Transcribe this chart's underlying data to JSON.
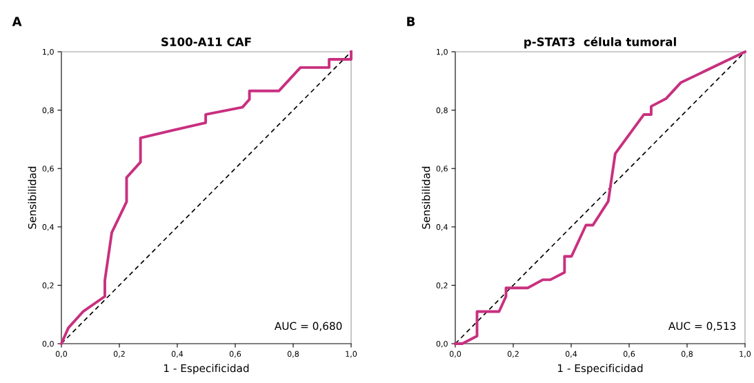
{
  "chart_data": [
    {
      "type": "line",
      "title": "S100-A11 CAF",
      "xlabel": "1 - Especificidad",
      "ylabel": "Sensibilidad",
      "annotations": [
        "A",
        "AUC = 0,680"
      ],
      "grid": false,
      "legend": false,
      "xlim": [
        0,
        1
      ],
      "ylim": [
        0,
        1
      ],
      "xticks": [
        {
          "value": 0,
          "label": "0,0"
        },
        {
          "value": 0.2,
          "label": "0,2"
        },
        {
          "value": 0.4,
          "label": "0,4"
        },
        {
          "value": 0.6,
          "label": "0,6"
        },
        {
          "value": 0.8,
          "label": "0,8"
        },
        {
          "value": 1,
          "label": "1,0"
        }
      ],
      "yticks": [
        {
          "value": 0,
          "label": "0,0"
        },
        {
          "value": 0.2,
          "label": "0,2"
        },
        {
          "value": 0.4,
          "label": "0,4"
        },
        {
          "value": 0.6,
          "label": "0,6"
        },
        {
          "value": 0.8,
          "label": "0,8"
        },
        {
          "value": 1,
          "label": "1,0"
        }
      ],
      "series": [
        {
          "color": "#c8307f",
          "line_style": "solid",
          "x": [
            0,
            0.024,
            0.076,
            0.15,
            0.15,
            0.174,
            0.225,
            0.225,
            0.273,
            0.273,
            0.498,
            0.498,
            0.625,
            0.649,
            0.649,
            0.751,
            0.825,
            0.924,
            0.924,
            1,
            1
          ],
          "values": [
            0,
            0.054,
            0.111,
            0.162,
            0.217,
            0.381,
            0.486,
            0.569,
            0.622,
            0.705,
            0.757,
            0.785,
            0.81,
            0.837,
            0.866,
            0.866,
            0.946,
            0.946,
            0.974,
            0.974,
            1
          ]
        },
        {
          "color": "#000000",
          "line_style": "dashed",
          "x": [
            0,
            1
          ],
          "values": [
            0,
            1
          ]
        }
      ]
    },
    {
      "type": "line",
      "title": "p-STAT3  célula tumoral",
      "xlabel": "1 - Especificidad",
      "ylabel": "Sensibilidad",
      "annotations": [
        "B",
        "AUC = 0,513"
      ],
      "grid": false,
      "legend": false,
      "xlim": [
        0,
        1
      ],
      "ylim": [
        0,
        1
      ],
      "xticks": [
        {
          "value": 0,
          "label": "0,0"
        },
        {
          "value": 0.2,
          "label": "0,2"
        },
        {
          "value": 0.4,
          "label": "0,4"
        },
        {
          "value": 0.6,
          "label": "0,6"
        },
        {
          "value": 0.8,
          "label": "0,8"
        },
        {
          "value": 1,
          "label": "1,0"
        }
      ],
      "yticks": [
        {
          "value": 0,
          "label": "0,0"
        },
        {
          "value": 0.2,
          "label": "0,2"
        },
        {
          "value": 0.4,
          "label": "0,4"
        },
        {
          "value": 0.6,
          "label": "0,6"
        },
        {
          "value": 0.8,
          "label": "0,8"
        },
        {
          "value": 1,
          "label": "1,0"
        }
      ],
      "series": [
        {
          "color": "#c8307f",
          "line_style": "solid",
          "x": [
            0,
            0.024,
            0.075,
            0.075,
            0.151,
            0.175,
            0.175,
            0.25,
            0.302,
            0.328,
            0.377,
            0.377,
            0.401,
            0.451,
            0.475,
            0.528,
            0.552,
            0.651,
            0.676,
            0.676,
            0.728,
            0.778,
            1
          ],
          "values": [
            0,
            0,
            0.026,
            0.11,
            0.11,
            0.162,
            0.191,
            0.191,
            0.219,
            0.219,
            0.244,
            0.299,
            0.299,
            0.406,
            0.406,
            0.488,
            0.651,
            0.785,
            0.785,
            0.813,
            0.84,
            0.894,
            1
          ]
        },
        {
          "color": "#000000",
          "line_style": "dashed",
          "x": [
            0,
            1
          ],
          "values": [
            0,
            1
          ]
        }
      ]
    }
  ]
}
